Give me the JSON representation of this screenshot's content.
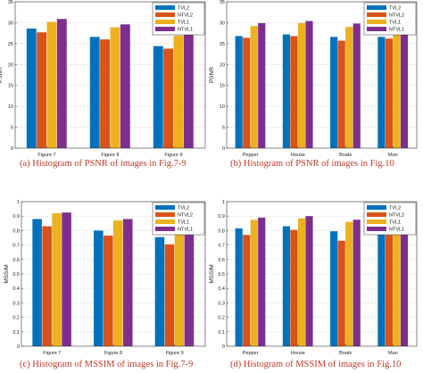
{
  "colors": {
    "TVL2": "#0072BD",
    "NTVL2": "#D95319",
    "TVL1": "#EDB120",
    "NTVL1": "#7E2F8E"
  },
  "chart_data": [
    {
      "type": "bar",
      "caption": "(a) Histogram of PSNR of images in Fig.7-9",
      "ylabel": "PSNR",
      "categories": [
        "Figure 7",
        "Figure 8",
        "Figure 9"
      ],
      "ylim": [
        0,
        35
      ],
      "yticks": [
        0,
        5,
        10,
        15,
        20,
        25,
        30,
        35
      ],
      "grid": true,
      "legend_position": "top-right",
      "series": [
        {
          "name": "TVL2",
          "values": [
            28.6,
            26.6,
            24.4
          ]
        },
        {
          "name": "NTVL2",
          "values": [
            27.7,
            26.0,
            23.8
          ]
        },
        {
          "name": "TVL1",
          "values": [
            30.2,
            28.9,
            26.9
          ]
        },
        {
          "name": "NTVL1",
          "values": [
            30.9,
            29.6,
            27.4
          ]
        }
      ]
    },
    {
      "type": "bar",
      "caption": "(b) Histogram of PSNR of images in Fig.10",
      "ylabel": "PSNR",
      "categories": [
        "Pepper",
        "House",
        "Boats",
        "Man"
      ],
      "ylim": [
        0,
        35
      ],
      "yticks": [
        0,
        5,
        10,
        15,
        20,
        25,
        30,
        35
      ],
      "grid": true,
      "legend_position": "top-right",
      "series": [
        {
          "name": "TVL2",
          "values": [
            26.8,
            27.2,
            26.6,
            26.6
          ]
        },
        {
          "name": "NTVL2",
          "values": [
            26.4,
            26.8,
            25.7,
            26.2
          ]
        },
        {
          "name": "TVL1",
          "values": [
            29.2,
            29.9,
            29.0,
            29.2
          ]
        },
        {
          "name": "NTVL1",
          "values": [
            29.9,
            30.4,
            29.8,
            30.0
          ]
        }
      ]
    },
    {
      "type": "bar",
      "caption": "(c) Histogram of MSSIM of images in Fig.7-9",
      "ylabel": "MSSIM",
      "categories": [
        "Figure 7",
        "Figure 8",
        "Figure 9"
      ],
      "ylim": [
        0,
        1
      ],
      "yticks": [
        0,
        0.1,
        0.2,
        0.3,
        0.4,
        0.5,
        0.6,
        0.7,
        0.8,
        0.9,
        1
      ],
      "grid": true,
      "legend_position": "top-right",
      "series": [
        {
          "name": "TVL2",
          "values": [
            0.88,
            0.8,
            0.755
          ]
        },
        {
          "name": "NTVL2",
          "values": [
            0.83,
            0.765,
            0.705
          ]
        },
        {
          "name": "TVL1",
          "values": [
            0.92,
            0.87,
            0.805
          ]
        },
        {
          "name": "NTVL1",
          "values": [
            0.925,
            0.88,
            0.81
          ]
        }
      ]
    },
    {
      "type": "bar",
      "caption": "(d) Histogram of MSSIM of images in Fig.10",
      "ylabel": "MSSIM",
      "categories": [
        "Pepper",
        "House",
        "Boats",
        "Man"
      ],
      "ylim": [
        0,
        1
      ],
      "yticks": [
        0,
        0.1,
        0.2,
        0.3,
        0.4,
        0.5,
        0.6,
        0.7,
        0.8,
        0.9,
        1
      ],
      "grid": true,
      "legend_position": "top-right",
      "series": [
        {
          "name": "TVL2",
          "values": [
            0.815,
            0.83,
            0.795,
            0.81
          ]
        },
        {
          "name": "NTVL2",
          "values": [
            0.77,
            0.805,
            0.73,
            0.77
          ]
        },
        {
          "name": "TVL1",
          "values": [
            0.875,
            0.885,
            0.86,
            0.865
          ]
        },
        {
          "name": "NTVL1",
          "values": [
            0.89,
            0.9,
            0.875,
            0.875
          ]
        }
      ]
    }
  ]
}
